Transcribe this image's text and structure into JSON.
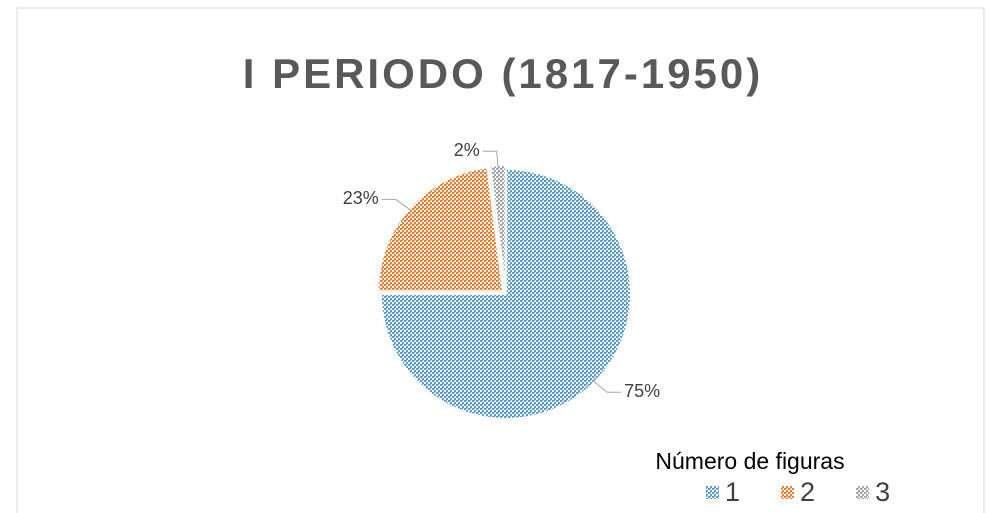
{
  "chart_data": {
    "type": "pie",
    "title": "I PERIODO (1817-1950)",
    "categories": [
      "1",
      "2",
      "3"
    ],
    "values": [
      75,
      23,
      2
    ],
    "value_labels": [
      "75%",
      "23%",
      "2%"
    ],
    "colors": [
      "#5b9bd5",
      "#ed7d31",
      "#a5a5a5"
    ],
    "legend_title": "Número de figuras",
    "legend": "bottom-right"
  }
}
